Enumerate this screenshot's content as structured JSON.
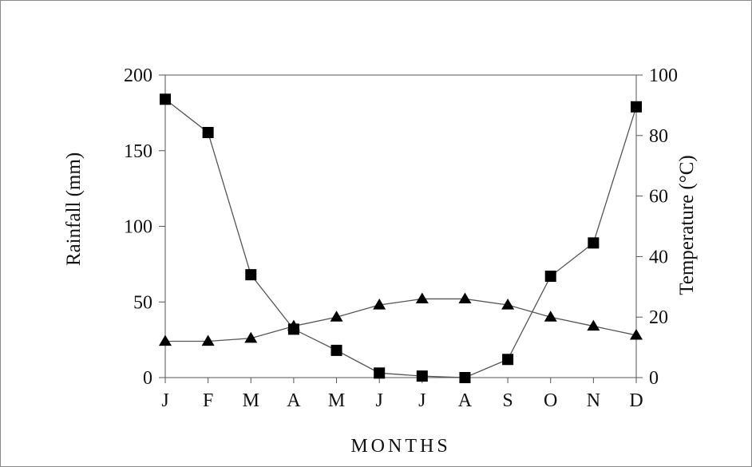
{
  "chart_data": {
    "type": "line",
    "categories": [
      "J",
      "F",
      "M",
      "A",
      "M",
      "J",
      "J",
      "A",
      "S",
      "O",
      "N",
      "D"
    ],
    "xlabel": "MONTHS",
    "ylabel_left": "Rainfall (mm)",
    "ylabel_right": "Temperature (°C)",
    "ylim_left": [
      0,
      200
    ],
    "ylim_right": [
      0,
      100
    ],
    "yticks_left": [
      "0",
      "50",
      "100",
      "150",
      "200"
    ],
    "yticks_right": [
      "0",
      "20",
      "40",
      "60",
      "80",
      "100"
    ],
    "grid": false,
    "series": [
      {
        "axis": "left",
        "marker": "square",
        "values": [
          184,
          162,
          68,
          32,
          18,
          3,
          1,
          0,
          12,
          67,
          89,
          179
        ]
      },
      {
        "axis": "right",
        "marker": "triangle",
        "values": [
          12,
          12,
          13,
          17,
          20,
          24,
          26,
          26,
          24,
          20,
          17,
          14
        ]
      }
    ],
    "colors": {
      "line": "#555555",
      "marker": "#000000",
      "axis": "#555555"
    }
  }
}
